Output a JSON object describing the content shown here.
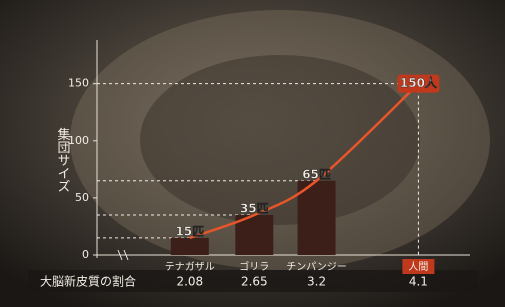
{
  "chart_data": {
    "type": "bar",
    "y_label": "集団サイズ",
    "x_label": "大脳新皮質の割合",
    "categories": [
      "テナガザル",
      "ゴリラ",
      "チンパンジー",
      "人間"
    ],
    "x": [
      2.08,
      2.65,
      3.2,
      4.1
    ],
    "values": [
      15,
      35,
      65,
      150
    ],
    "value_labels": [
      "15匹",
      "35匹",
      "65匹",
      "150人"
    ],
    "colors": [
      "#3b1f18",
      "#3b1f18",
      "#3b1f18",
      null
    ],
    "line_color": "#e8552a",
    "xlim": [
      1.26,
      4.6
    ],
    "ylim": [
      0,
      190
    ],
    "yticks": [
      0,
      50,
      100,
      150
    ]
  }
}
